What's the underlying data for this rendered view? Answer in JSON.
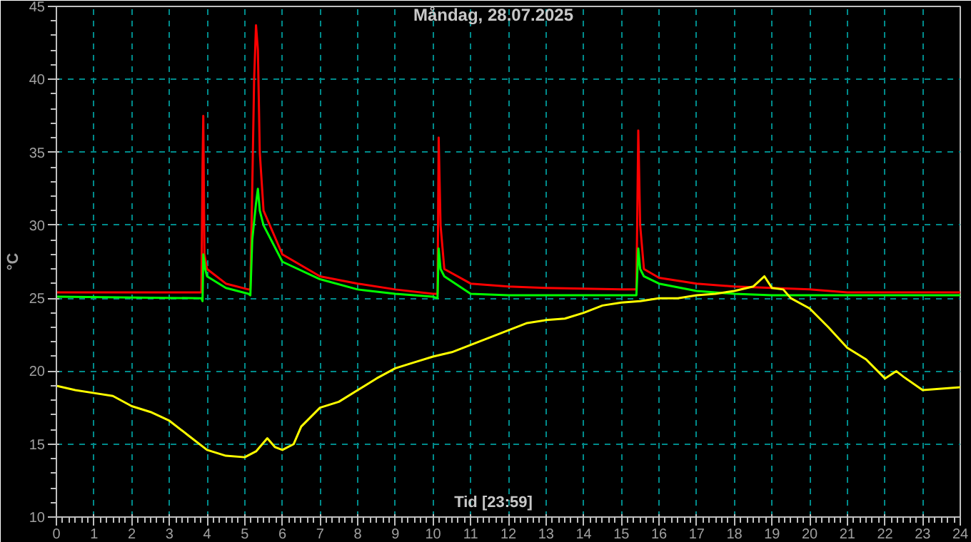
{
  "chart_data": {
    "type": "line",
    "title": "Måndag, 28.07.2025",
    "xlabel": "Tid [23:59]",
    "ylabel": "°C",
    "xlim": [
      0,
      24
    ],
    "ylim": [
      10,
      45
    ],
    "xticks": [
      0,
      1,
      2,
      3,
      4,
      5,
      6,
      7,
      8,
      9,
      10,
      11,
      12,
      13,
      14,
      15,
      16,
      17,
      18,
      19,
      20,
      21,
      22,
      23,
      24
    ],
    "yticks": [
      10,
      15,
      20,
      25,
      30,
      35,
      40,
      45
    ],
    "grid": true,
    "marker": "none",
    "line_style": "solid",
    "series": [
      {
        "color": "#ff0000",
        "x": [
          0,
          3.85,
          3.88,
          3.9,
          3.93,
          4.0,
          4.5,
          5.1,
          5.15,
          5.2,
          5.25,
          5.3,
          5.35,
          5.4,
          5.5,
          6,
          7,
          8,
          9,
          10,
          10.12,
          10.15,
          10.2,
          10.3,
          11,
          12,
          13,
          15,
          15.4,
          15.45,
          15.5,
          15.6,
          16,
          17,
          18,
          19,
          20,
          21,
          24
        ],
        "values": [
          25.4,
          25.4,
          34,
          37.5,
          28,
          27,
          26,
          25.6,
          25.6,
          32.5,
          40,
          43.7,
          42,
          35,
          31,
          28,
          26.5,
          26,
          25.6,
          25.3,
          25.3,
          36,
          30,
          27,
          26,
          25.8,
          25.7,
          25.6,
          25.6,
          36.5,
          30,
          27,
          26.4,
          26,
          25.8,
          25.7,
          25.6,
          25.4,
          25.4
        ]
      },
      {
        "color": "#00ff00",
        "x": [
          0,
          3.85,
          3.88,
          3.9,
          3.95,
          4.0,
          4.5,
          5.1,
          5.15,
          5.2,
          5.3,
          5.35,
          5.4,
          5.5,
          6,
          7,
          8,
          9,
          10,
          10.12,
          10.15,
          10.2,
          10.3,
          11,
          12,
          15,
          15.4,
          15.45,
          15.5,
          15.6,
          16,
          17,
          18,
          19,
          24
        ],
        "values": [
          25.1,
          25.0,
          24.8,
          28,
          27,
          26.5,
          25.7,
          25.3,
          25.2,
          29,
          31.5,
          32.5,
          31,
          30,
          27.5,
          26.3,
          25.6,
          25.3,
          25.1,
          25.0,
          28.4,
          27,
          26.5,
          25.3,
          25.2,
          25.2,
          25.2,
          28.4,
          27,
          26.5,
          26,
          25.5,
          25.3,
          25.2,
          25.2
        ]
      },
      {
        "color": "#ffff00",
        "x": [
          0,
          0.5,
          1,
          1.5,
          2,
          2.5,
          3,
          3.5,
          4,
          4.5,
          5,
          5.3,
          5.6,
          5.8,
          6,
          6.3,
          6.5,
          7,
          7.5,
          8,
          8.5,
          9,
          9.5,
          10,
          10.5,
          11,
          11.5,
          12,
          12.5,
          13,
          13.5,
          14,
          14.5,
          15,
          15.5,
          16,
          16.5,
          17,
          17.5,
          18,
          18.5,
          18.8,
          19,
          19.3,
          19.5,
          20,
          20.5,
          21,
          21.5,
          22,
          22.3,
          22.5,
          23,
          23.5,
          24
        ],
        "values": [
          19.0,
          18.7,
          18.5,
          18.3,
          17.6,
          17.2,
          16.6,
          15.6,
          14.6,
          14.2,
          14.1,
          14.5,
          15.4,
          14.8,
          14.6,
          15.0,
          16.2,
          17.5,
          17.9,
          18.7,
          19.5,
          20.2,
          20.6,
          21.0,
          21.3,
          21.8,
          22.3,
          22.8,
          23.3,
          23.5,
          23.6,
          24.0,
          24.5,
          24.7,
          24.8,
          25.0,
          25.0,
          25.2,
          25.3,
          25.5,
          25.8,
          26.5,
          25.7,
          25.6,
          25.0,
          24.3,
          23.0,
          21.6,
          20.8,
          19.5,
          20.0,
          19.6,
          18.7,
          18.8,
          18.9
        ]
      }
    ]
  }
}
